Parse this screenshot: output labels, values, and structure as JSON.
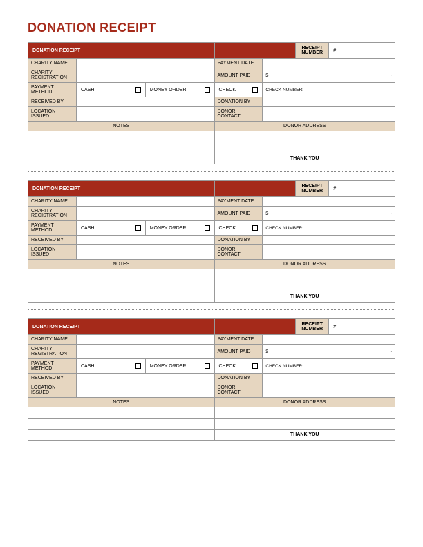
{
  "page_title": "DONATION RECEIPT",
  "colors": {
    "header_bg": "#a52a1a",
    "header_text": "#ffffff",
    "label_bg": "#e6d6c0",
    "border": "#999999",
    "title_color": "#a52a1a"
  },
  "typography": {
    "title_fontsize_pt": 18,
    "label_fontsize_pt": 6.5,
    "header_fontsize_pt": 8
  },
  "receipt_template": {
    "header_title": "DONATION RECEIPT",
    "receipt_number_label": "RECEIPT NUMBER",
    "receipt_number_value": "#",
    "rows_left": [
      "CHARITY NAME",
      "CHARITY REGISTRATION",
      "PAYMENT METHOD",
      "RECEIVED BY",
      "LOCATION ISSUED"
    ],
    "rows_right": [
      "PAYMENT DATE",
      "AMOUNT PAID",
      "",
      "DONATION BY",
      "DONOR CONTACT"
    ],
    "amount_prefix": "$",
    "amount_suffix": "-",
    "payment_methods": [
      "CASH",
      "MONEY ORDER",
      "CHECK"
    ],
    "check_number_label": "CHECK NUMBER:",
    "notes_label": "NOTES",
    "donor_address_label": "DONOR ADDRESS",
    "thank_you": "THANK YOU"
  },
  "copies": 3
}
